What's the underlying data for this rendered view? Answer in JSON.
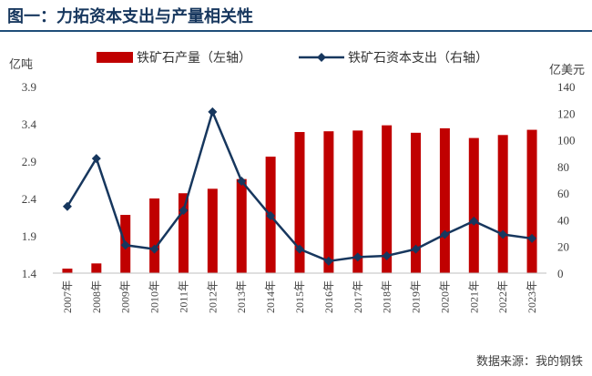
{
  "header": {
    "title": "图一：力拓资本支出与产量相关性"
  },
  "units": {
    "left": "亿吨",
    "right": "亿美元"
  },
  "source": "数据来源：我的钢铁",
  "colors": {
    "bar": "#c00000",
    "line": "#17375e",
    "title": "#17375e"
  },
  "chart_data": {
    "type": "bar+line",
    "categories": [
      "2007年",
      "2008年",
      "2009年",
      "2010年",
      "2011年",
      "2012年",
      "2013年",
      "2014年",
      "2015年",
      "2016年",
      "2017年",
      "2018年",
      "2019年",
      "2020年",
      "2021年",
      "2022年",
      "2023年"
    ],
    "series": [
      {
        "name": "铁矿石产量（左轴）",
        "type": "bar",
        "axis": "left",
        "values": [
          1.46,
          1.53,
          2.18,
          2.4,
          2.47,
          2.53,
          2.66,
          2.96,
          3.29,
          3.3,
          3.31,
          3.38,
          3.28,
          3.34,
          3.21,
          3.25,
          3.32
        ]
      },
      {
        "name": "铁矿石资本支出（右轴）",
        "type": "line",
        "axis": "right",
        "values": [
          50,
          86,
          21,
          18,
          47,
          121,
          69,
          43,
          18,
          9,
          12,
          13,
          18,
          29,
          39,
          29,
          26
        ]
      }
    ],
    "y_left": {
      "min": 1.4,
      "max": 3.9,
      "ticks": [
        "1.4",
        "1.9",
        "2.4",
        "2.9",
        "3.4",
        "3.9"
      ]
    },
    "y_right": {
      "min": 0,
      "max": 140,
      "ticks": [
        "0",
        "20",
        "40",
        "60",
        "80",
        "100",
        "120",
        "140"
      ]
    },
    "legend_position": "top",
    "grid": false
  }
}
